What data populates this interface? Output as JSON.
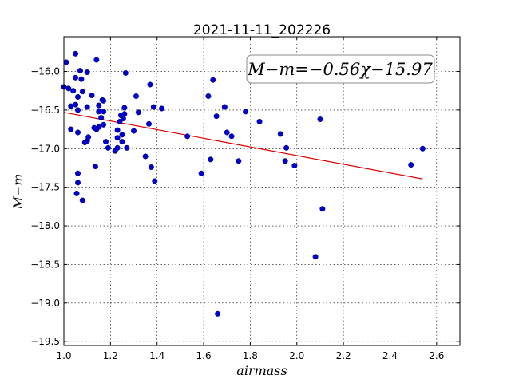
{
  "chart_data": {
    "type": "scatter",
    "title": "2021-11-11_202226",
    "xlabel": "airmass",
    "ylabel": "M−m",
    "xlim": [
      1.0,
      2.7
    ],
    "ylim": [
      -19.55,
      -15.55
    ],
    "y_inverted_display": true,
    "grid": true,
    "x_ticks": [
      1.0,
      1.2,
      1.4,
      1.6,
      1.8,
      2.0,
      2.2,
      2.4,
      2.6
    ],
    "x_tick_labels": [
      "1.0",
      "1.2",
      "1.4",
      "1.6",
      "1.8",
      "2.0",
      "2.2",
      "2.4",
      "2.6"
    ],
    "y_ticks": [
      -16.0,
      -16.5,
      -17.0,
      -17.5,
      -18.0,
      -18.5,
      -19.0,
      -19.5
    ],
    "y_tick_labels": [
      "−16.0",
      "−16.5",
      "−17.0",
      "−17.5",
      "−18.0",
      "−18.5",
      "−19.0",
      "−19.5"
    ],
    "annotation": "M−m=−0.56χ−15.97",
    "point_color": "#0000cc",
    "fit_color": "#dd0000",
    "fit": {
      "slope": -0.56,
      "intercept": -15.97,
      "x_range": [
        1.0,
        2.54
      ]
    },
    "points": [
      {
        "x": 1.0,
        "y": -16.2
      },
      {
        "x": 1.01,
        "y": -15.88
      },
      {
        "x": 1.02,
        "y": -16.22
      },
      {
        "x": 1.03,
        "y": -16.45
      },
      {
        "x": 1.03,
        "y": -16.75
      },
      {
        "x": 1.04,
        "y": -16.25
      },
      {
        "x": 1.05,
        "y": -15.77
      },
      {
        "x": 1.05,
        "y": -16.08
      },
      {
        "x": 1.05,
        "y": -16.43
      },
      {
        "x": 1.06,
        "y": -16.33
      },
      {
        "x": 1.06,
        "y": -16.5
      },
      {
        "x": 1.06,
        "y": -16.79
      },
      {
        "x": 1.06,
        "y": -17.32
      },
      {
        "x": 1.06,
        "y": -17.44
      },
      {
        "x": 1.055,
        "y": -17.58
      },
      {
        "x": 1.07,
        "y": -15.99
      },
      {
        "x": 1.075,
        "y": -16.1
      },
      {
        "x": 1.08,
        "y": -16.26
      },
      {
        "x": 1.08,
        "y": -17.67
      },
      {
        "x": 1.09,
        "y": -16.92
      },
      {
        "x": 1.1,
        "y": -16.01
      },
      {
        "x": 1.1,
        "y": -16.46
      },
      {
        "x": 1.1,
        "y": -16.9
      },
      {
        "x": 1.105,
        "y": -16.85
      },
      {
        "x": 1.12,
        "y": -16.31
      },
      {
        "x": 1.13,
        "y": -16.73
      },
      {
        "x": 1.135,
        "y": -17.23
      },
      {
        "x": 1.14,
        "y": -15.85
      },
      {
        "x": 1.14,
        "y": -16.75
      },
      {
        "x": 1.15,
        "y": -16.44
      },
      {
        "x": 1.15,
        "y": -16.52
      },
      {
        "x": 1.15,
        "y": -16.72
      },
      {
        "x": 1.16,
        "y": -16.6
      },
      {
        "x": 1.165,
        "y": -16.37
      },
      {
        "x": 1.17,
        "y": -16.38
      },
      {
        "x": 1.17,
        "y": -16.52
      },
      {
        "x": 1.17,
        "y": -16.69
      },
      {
        "x": 1.18,
        "y": -16.91
      },
      {
        "x": 1.19,
        "y": -16.99
      },
      {
        "x": 1.22,
        "y": -17.03
      },
      {
        "x": 1.23,
        "y": -16.76
      },
      {
        "x": 1.23,
        "y": -16.86
      },
      {
        "x": 1.23,
        "y": -16.99
      },
      {
        "x": 1.24,
        "y": -16.65
      },
      {
        "x": 1.245,
        "y": -16.57
      },
      {
        "x": 1.25,
        "y": -16.82
      },
      {
        "x": 1.25,
        "y": -16.91
      },
      {
        "x": 1.255,
        "y": -16.61
      },
      {
        "x": 1.26,
        "y": -16.47
      },
      {
        "x": 1.26,
        "y": -16.55
      },
      {
        "x": 1.265,
        "y": -16.02
      },
      {
        "x": 1.27,
        "y": -16.99
      },
      {
        "x": 1.3,
        "y": -16.77
      },
      {
        "x": 1.31,
        "y": -16.32
      },
      {
        "x": 1.32,
        "y": -16.53
      },
      {
        "x": 1.35,
        "y": -17.1
      },
      {
        "x": 1.365,
        "y": -16.68
      },
      {
        "x": 1.37,
        "y": -16.17
      },
      {
        "x": 1.375,
        "y": -17.24
      },
      {
        "x": 1.385,
        "y": -16.46
      },
      {
        "x": 1.39,
        "y": -17.42
      },
      {
        "x": 1.42,
        "y": -16.48
      },
      {
        "x": 1.53,
        "y": -16.84
      },
      {
        "x": 1.59,
        "y": -17.32
      },
      {
        "x": 1.62,
        "y": -16.32
      },
      {
        "x": 1.63,
        "y": -17.14
      },
      {
        "x": 1.64,
        "y": -16.11
      },
      {
        "x": 1.655,
        "y": -16.58
      },
      {
        "x": 1.66,
        "y": -19.14
      },
      {
        "x": 1.69,
        "y": -16.46
      },
      {
        "x": 1.7,
        "y": -16.79
      },
      {
        "x": 1.72,
        "y": -16.84
      },
      {
        "x": 1.75,
        "y": -17.16
      },
      {
        "x": 1.78,
        "y": -16.52
      },
      {
        "x": 1.84,
        "y": -16.65
      },
      {
        "x": 1.93,
        "y": -16.81
      },
      {
        "x": 1.95,
        "y": -17.16
      },
      {
        "x": 1.955,
        "y": -16.99
      },
      {
        "x": 1.99,
        "y": -17.22
      },
      {
        "x": 2.08,
        "y": -18.4
      },
      {
        "x": 2.1,
        "y": -16.62
      },
      {
        "x": 2.11,
        "y": -17.78
      },
      {
        "x": 2.49,
        "y": -17.21
      },
      {
        "x": 2.54,
        "y": -17.0
      }
    ]
  }
}
